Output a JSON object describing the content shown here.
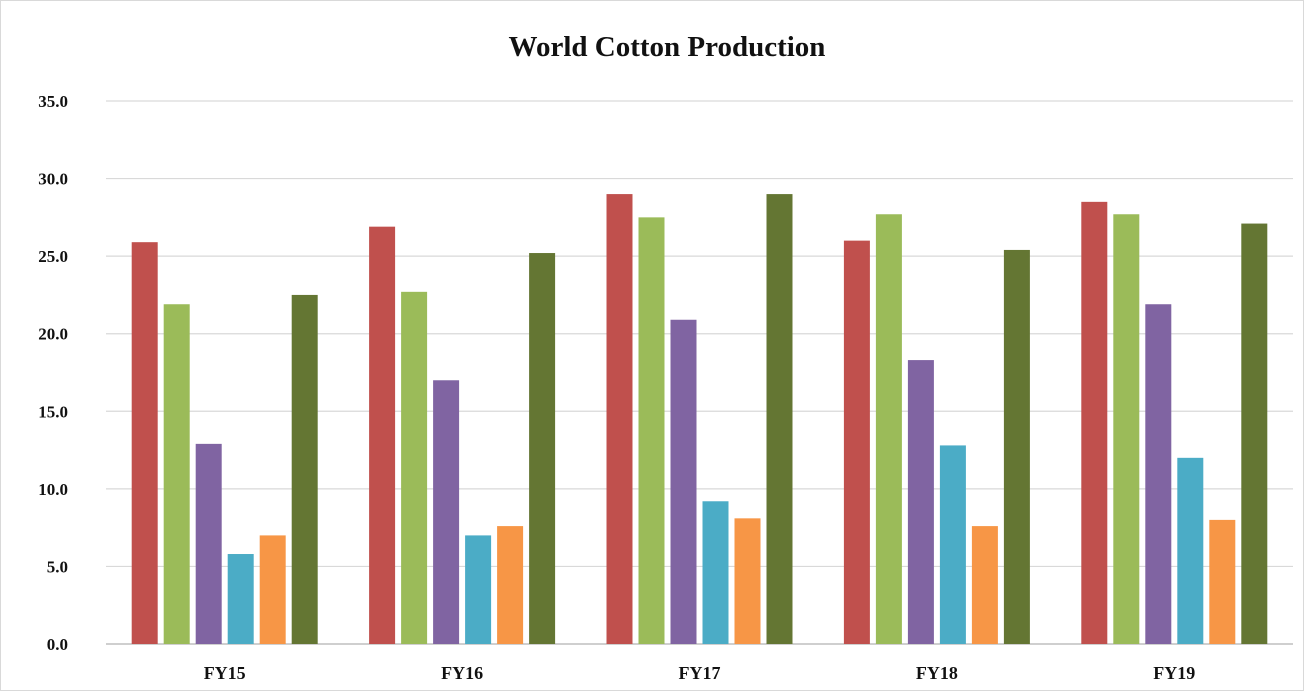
{
  "chart_data": {
    "type": "bar",
    "title": "World Cotton Production",
    "xlabel": "",
    "ylabel": "",
    "categories": [
      "FY15",
      "FY16",
      "FY17",
      "FY18",
      "FY19"
    ],
    "ylim": [
      0,
      35
    ],
    "yticks": [
      "0.0",
      "5.0",
      "10.0",
      "15.0",
      "20.0",
      "25.0",
      "30.0",
      "35.0"
    ],
    "grid": true,
    "legend": "none",
    "series": [
      {
        "color": "#c0504d",
        "values": [
          25.9,
          26.9,
          29.0,
          26.0,
          28.5
        ]
      },
      {
        "color": "#9bbb59",
        "values": [
          21.9,
          22.7,
          27.5,
          27.7,
          27.7
        ]
      },
      {
        "color": "#8064a2",
        "values": [
          12.9,
          17.0,
          20.9,
          18.3,
          21.9
        ]
      },
      {
        "color": "#4bacc6",
        "values": [
          5.8,
          7.0,
          9.2,
          12.8,
          12.0
        ]
      },
      {
        "color": "#f79646",
        "values": [
          7.0,
          7.6,
          8.1,
          7.6,
          8.0
        ]
      },
      {
        "color": "#647633",
        "values": [
          22.5,
          25.2,
          29.0,
          25.4,
          27.1
        ]
      }
    ]
  }
}
